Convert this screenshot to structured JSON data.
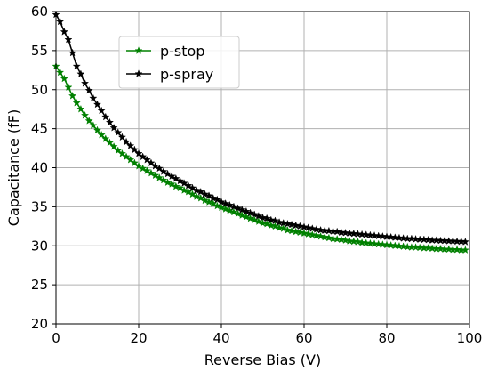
{
  "chart_data": {
    "type": "line",
    "xlabel": "Reverse Bias (V)",
    "ylabel": "Capacitance (fF)",
    "xlim": [
      0,
      100
    ],
    "ylim": [
      20,
      60
    ],
    "xticks": [
      "0",
      "20",
      "40",
      "60",
      "80",
      "100"
    ],
    "yticks": [
      "20",
      "25",
      "30",
      "35",
      "40",
      "45",
      "50",
      "55",
      "60"
    ],
    "grid": true,
    "legend_position": "top-left",
    "marker": "star",
    "x": [
      0,
      1,
      2,
      3,
      4,
      5,
      6,
      7,
      8,
      9,
      10,
      11,
      12,
      13,
      14,
      15,
      16,
      17,
      18,
      19,
      20,
      21,
      22,
      23,
      24,
      25,
      26,
      27,
      28,
      29,
      30,
      31,
      32,
      33,
      34,
      35,
      36,
      37,
      38,
      39,
      40,
      41,
      42,
      43,
      44,
      45,
      46,
      47,
      48,
      49,
      50,
      51,
      52,
      53,
      54,
      55,
      56,
      57,
      58,
      59,
      60,
      61,
      62,
      63,
      64,
      65,
      66,
      67,
      68,
      69,
      70,
      71,
      72,
      73,
      74,
      75,
      76,
      77,
      78,
      79,
      80,
      81,
      82,
      83,
      84,
      85,
      86,
      87,
      88,
      89,
      90,
      91,
      92,
      93,
      94,
      95,
      96,
      97,
      98,
      99
    ],
    "series": [
      {
        "name": "p-stop",
        "color": "#008000",
        "values": [
          53.0,
          52.2,
          51.4,
          50.3,
          49.2,
          48.3,
          47.5,
          46.7,
          46.0,
          45.4,
          44.8,
          44.2,
          43.7,
          43.2,
          42.7,
          42.2,
          41.8,
          41.4,
          41.0,
          40.6,
          40.2,
          39.9,
          39.6,
          39.3,
          39.0,
          38.7,
          38.4,
          38.1,
          37.9,
          37.6,
          37.4,
          37.1,
          36.9,
          36.6,
          36.3,
          36.1,
          35.8,
          35.6,
          35.4,
          35.1,
          34.9,
          34.7,
          34.5,
          34.3,
          34.1,
          33.9,
          33.7,
          33.5,
          33.3,
          33.1,
          32.9,
          32.8,
          32.6,
          32.5,
          32.3,
          32.2,
          32.0,
          31.9,
          31.8,
          31.7,
          31.6,
          31.5,
          31.4,
          31.3,
          31.2,
          31.1,
          31.0,
          30.9,
          30.85,
          30.8,
          30.7,
          30.6,
          30.55,
          30.5,
          30.4,
          30.35,
          30.3,
          30.25,
          30.2,
          30.15,
          30.1,
          30.05,
          30.0,
          29.95,
          29.9,
          29.85,
          29.8,
          29.8,
          29.75,
          29.7,
          29.7,
          29.65,
          29.6,
          29.6,
          29.55,
          29.55,
          29.5,
          29.5,
          29.45,
          29.45
        ]
      },
      {
        "name": "p-spray",
        "color": "#000000",
        "values": [
          59.6,
          58.7,
          57.4,
          56.4,
          54.7,
          53.0,
          52.0,
          50.8,
          49.9,
          48.9,
          48.1,
          47.3,
          46.5,
          45.8,
          45.1,
          44.5,
          43.9,
          43.3,
          42.8,
          42.3,
          41.8,
          41.4,
          41.0,
          40.6,
          40.2,
          39.9,
          39.5,
          39.2,
          38.9,
          38.6,
          38.3,
          38.0,
          37.7,
          37.4,
          37.1,
          36.9,
          36.6,
          36.4,
          36.1,
          35.9,
          35.6,
          35.4,
          35.2,
          35.0,
          34.8,
          34.6,
          34.4,
          34.2,
          34.0,
          33.8,
          33.6,
          33.5,
          33.3,
          33.2,
          33.0,
          32.9,
          32.8,
          32.7,
          32.6,
          32.5,
          32.4,
          32.3,
          32.2,
          32.1,
          32.0,
          31.95,
          31.9,
          31.85,
          31.8,
          31.7,
          31.65,
          31.6,
          31.55,
          31.5,
          31.45,
          31.4,
          31.35,
          31.3,
          31.25,
          31.2,
          31.15,
          31.1,
          31.05,
          31.0,
          30.95,
          30.9,
          30.9,
          30.85,
          30.8,
          30.8,
          30.75,
          30.7,
          30.7,
          30.65,
          30.65,
          30.6,
          30.6,
          30.55,
          30.55,
          30.5
        ]
      }
    ]
  }
}
